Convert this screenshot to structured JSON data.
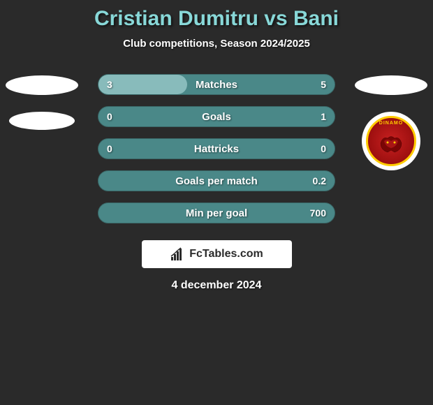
{
  "title": "Cristian Dumitru vs Bani",
  "subtitle": "Club competitions, Season 2024/2025",
  "date": "4 december 2024",
  "footer": {
    "text": "FcTables.com"
  },
  "colors": {
    "background": "#2a2a2a",
    "title_color": "#88d8d8",
    "bar_base": "#4a8888",
    "bar_fill": "#88bbbb",
    "text_white": "#ffffff",
    "badge_red": "#c82020",
    "badge_gold": "#ffcc00"
  },
  "bars": [
    {
      "label": "Matches",
      "left_val": "3",
      "right_val": "5",
      "left_pct": 37.5,
      "right_pct": 0
    },
    {
      "label": "Goals",
      "left_val": "0",
      "right_val": "1",
      "left_pct": 0,
      "right_pct": 0
    },
    {
      "label": "Hattricks",
      "left_val": "0",
      "right_val": "0",
      "left_pct": 0,
      "right_pct": 0
    },
    {
      "label": "Goals per match",
      "left_val": "",
      "right_val": "0.2",
      "left_pct": 0,
      "right_pct": 0
    },
    {
      "label": "Min per goal",
      "left_val": "",
      "right_val": "700",
      "left_pct": 0,
      "right_pct": 0
    }
  ],
  "club_right": {
    "name": "DINAMO"
  }
}
